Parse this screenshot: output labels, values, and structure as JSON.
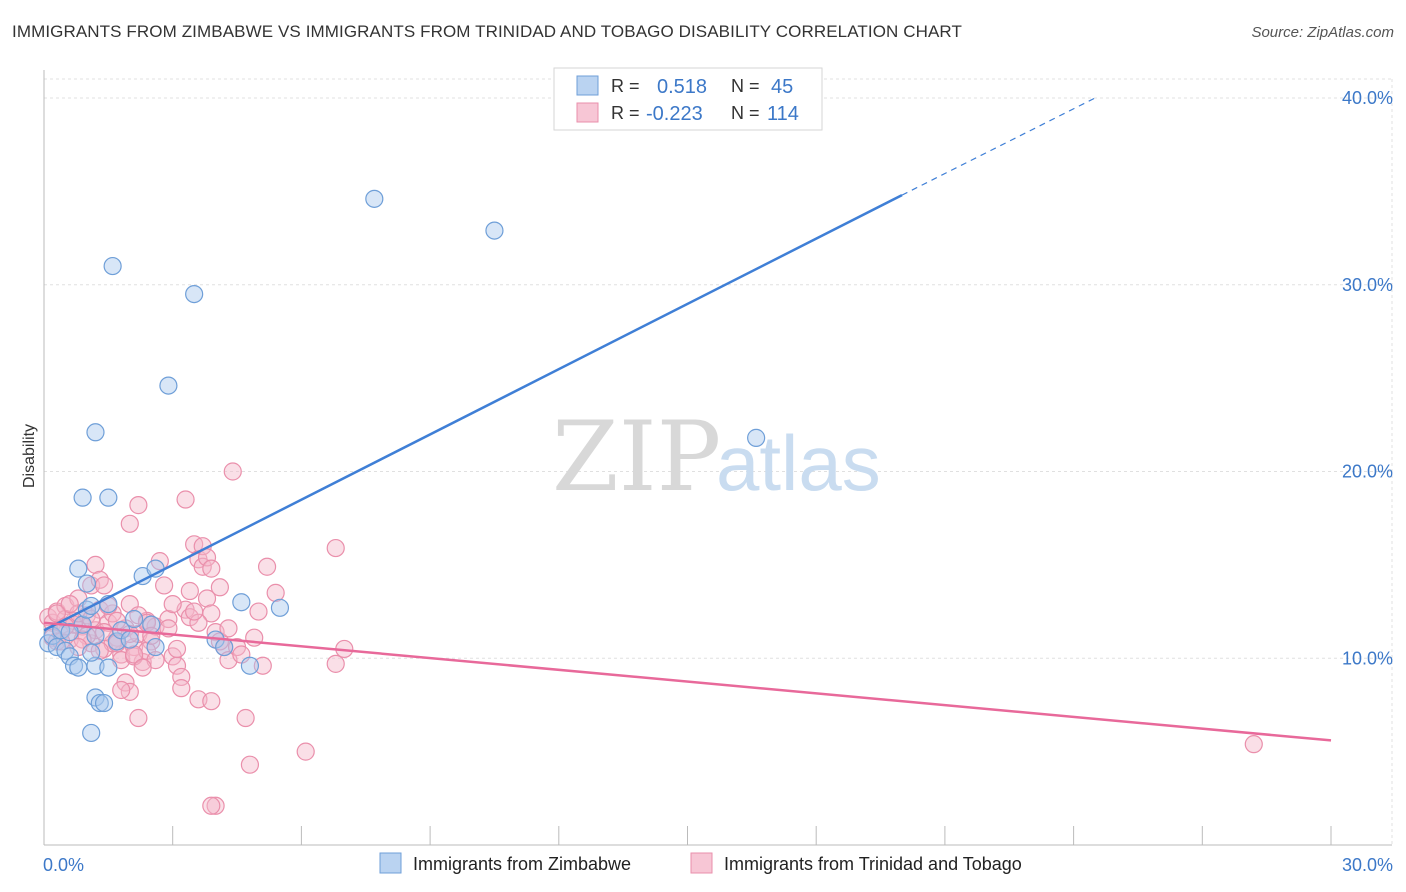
{
  "title": "IMMIGRANTS FROM ZIMBABWE VS IMMIGRANTS FROM TRINIDAD AND TOBAGO DISABILITY CORRELATION CHART",
  "source": "Source: ZipAtlas.com",
  "watermark": {
    "zip": "ZIP",
    "atlas": "atlas"
  },
  "colors": {
    "blue": "#a9c8ee",
    "blue_stroke": "#6f9fd8",
    "blue_line": "#3f7fd6",
    "pink": "#f5b8ca",
    "pink_stroke": "#ea8fab",
    "pink_line": "#e8699a",
    "tick_text": "#3c78c8",
    "grid": "#e0e0e0"
  },
  "chart_data": {
    "type": "scatter",
    "title": "IMMIGRANTS FROM ZIMBABWE VS IMMIGRANTS FROM TRINIDAD AND TOBAGO DISABILITY CORRELATION CHART",
    "xlabel": "",
    "ylabel": "Disability",
    "xlim": [
      0,
      30
    ],
    "ylim": [
      0,
      40
    ],
    "x_ticks": [
      "0.0%",
      "30.0%"
    ],
    "y_ticks": [
      {
        "value": 10,
        "label": "10.0%"
      },
      {
        "value": 20,
        "label": "20.0%"
      },
      {
        "value": 30,
        "label": "30.0%"
      },
      {
        "value": 40,
        "label": "40.0%"
      }
    ],
    "legend_position": "top-center",
    "grid": true,
    "series": [
      {
        "name": "Immigrants from Zimbabwe",
        "color": "#a9c8ee",
        "R": "0.518",
        "N": "45",
        "trend": {
          "x": [
            0,
            20.0
          ],
          "y": [
            11.5,
            34.8
          ],
          "dashed_to": [
            24.5,
            40.0
          ]
        },
        "points": [
          [
            0.1,
            10.8
          ],
          [
            0.2,
            11.2
          ],
          [
            0.3,
            10.6
          ],
          [
            0.4,
            11.5
          ],
          [
            0.5,
            10.4
          ],
          [
            0.6,
            10.1
          ],
          [
            0.7,
            9.6
          ],
          [
            0.8,
            9.5
          ],
          [
            0.9,
            11.8
          ],
          [
            1.0,
            12.6
          ],
          [
            1.1,
            12.8
          ],
          [
            1.2,
            9.6
          ],
          [
            0.9,
            18.6
          ],
          [
            1.5,
            18.6
          ],
          [
            0.8,
            14.8
          ],
          [
            1.0,
            14.0
          ],
          [
            1.2,
            11.2
          ],
          [
            1.1,
            10.3
          ],
          [
            1.5,
            12.9
          ],
          [
            1.7,
            10.9
          ],
          [
            1.8,
            11.5
          ],
          [
            2.0,
            11.0
          ],
          [
            2.1,
            12.1
          ],
          [
            2.3,
            14.4
          ],
          [
            2.6,
            10.6
          ],
          [
            2.5,
            11.8
          ],
          [
            2.6,
            14.8
          ],
          [
            1.2,
            7.9
          ],
          [
            1.3,
            7.6
          ],
          [
            1.4,
            7.6
          ],
          [
            1.1,
            6.0
          ],
          [
            1.2,
            22.1
          ],
          [
            1.6,
            31.0
          ],
          [
            2.9,
            24.6
          ],
          [
            3.5,
            29.5
          ],
          [
            7.7,
            34.6
          ],
          [
            10.5,
            32.9
          ],
          [
            16.6,
            21.8
          ],
          [
            4.0,
            11.0
          ],
          [
            4.2,
            10.6
          ],
          [
            4.6,
            13.0
          ],
          [
            4.8,
            9.6
          ],
          [
            5.5,
            12.7
          ],
          [
            1.5,
            9.5
          ],
          [
            0.6,
            11.4
          ]
        ]
      },
      {
        "name": "Immigrants from Trinidad and Tobago",
        "color": "#f5b8ca",
        "R": "-0.223",
        "N": "114",
        "trend": {
          "x": [
            0,
            30
          ],
          "y": [
            11.9,
            5.6
          ]
        },
        "points": [
          [
            0.1,
            12.2
          ],
          [
            0.2,
            11.9
          ],
          [
            0.3,
            12.5
          ],
          [
            0.4,
            11.4
          ],
          [
            0.5,
            12.8
          ],
          [
            0.6,
            11.0
          ],
          [
            0.7,
            12.0
          ],
          [
            0.8,
            13.2
          ],
          [
            0.9,
            11.7
          ],
          [
            1.0,
            12.3
          ],
          [
            1.1,
            10.8
          ],
          [
            1.2,
            11.5
          ],
          [
            1.3,
            12.6
          ],
          [
            1.4,
            10.5
          ],
          [
            1.5,
            11.9
          ],
          [
            1.6,
            12.4
          ],
          [
            1.7,
            11.1
          ],
          [
            1.8,
            10.2
          ],
          [
            1.9,
            11.6
          ],
          [
            2.0,
            12.9
          ],
          [
            2.1,
            10.6
          ],
          [
            2.2,
            11.3
          ],
          [
            2.3,
            9.8
          ],
          [
            2.4,
            12.0
          ],
          [
            2.5,
            10.9
          ],
          [
            2.6,
            11.7
          ],
          [
            0.2,
            11.1
          ],
          [
            0.3,
            10.9
          ],
          [
            0.5,
            12.1
          ],
          [
            0.7,
            11.8
          ],
          [
            0.8,
            12.4
          ],
          [
            1.0,
            11.2
          ],
          [
            1.1,
            13.9
          ],
          [
            1.2,
            15.0
          ],
          [
            1.3,
            14.2
          ],
          [
            1.5,
            12.8
          ],
          [
            1.6,
            10.8
          ],
          [
            1.8,
            9.9
          ],
          [
            1.9,
            8.7
          ],
          [
            2.0,
            8.2
          ],
          [
            2.1,
            10.1
          ],
          [
            2.2,
            12.3
          ],
          [
            2.4,
            10.4
          ],
          [
            2.6,
            9.9
          ],
          [
            2.7,
            15.2
          ],
          [
            2.8,
            13.9
          ],
          [
            2.9,
            12.1
          ],
          [
            3.0,
            10.1
          ],
          [
            3.1,
            9.6
          ],
          [
            3.2,
            9.0
          ],
          [
            3.3,
            12.6
          ],
          [
            3.4,
            13.6
          ],
          [
            3.5,
            16.1
          ],
          [
            3.6,
            15.3
          ],
          [
            3.7,
            14.9
          ],
          [
            3.8,
            13.2
          ],
          [
            3.9,
            12.4
          ],
          [
            4.0,
            11.4
          ],
          [
            4.1,
            13.8
          ],
          [
            4.2,
            10.6
          ],
          [
            4.3,
            9.9
          ],
          [
            4.4,
            20.0
          ],
          [
            2.2,
            18.2
          ],
          [
            2.0,
            17.2
          ],
          [
            3.3,
            18.5
          ],
          [
            3.7,
            16.0
          ],
          [
            3.8,
            15.4
          ],
          [
            3.9,
            14.8
          ],
          [
            3.6,
            7.8
          ],
          [
            3.9,
            7.7
          ],
          [
            4.0,
            2.1
          ],
          [
            3.9,
            2.1
          ],
          [
            4.7,
            6.8
          ],
          [
            4.8,
            4.3
          ],
          [
            5.0,
            12.5
          ],
          [
            5.2,
            14.9
          ],
          [
            5.4,
            13.5
          ],
          [
            5.1,
            9.6
          ],
          [
            6.1,
            5.0
          ],
          [
            6.8,
            15.9
          ],
          [
            6.8,
            9.7
          ],
          [
            7.0,
            10.5
          ],
          [
            2.2,
            6.8
          ],
          [
            3.2,
            8.4
          ],
          [
            1.7,
            12.0
          ],
          [
            1.4,
            13.9
          ],
          [
            0.4,
            10.9
          ],
          [
            0.6,
            12.9
          ],
          [
            0.9,
            11.0
          ],
          [
            1.3,
            10.4
          ],
          [
            2.0,
            11.3
          ],
          [
            2.4,
            11.9
          ],
          [
            2.9,
            11.6
          ],
          [
            3.1,
            10.5
          ],
          [
            3.4,
            12.2
          ],
          [
            3.6,
            11.9
          ],
          [
            4.5,
            10.6
          ],
          [
            4.6,
            10.2
          ],
          [
            0.3,
            12.4
          ],
          [
            0.5,
            11.7
          ],
          [
            0.8,
            10.6
          ],
          [
            1.1,
            12.1
          ],
          [
            1.4,
            11.4
          ],
          [
            1.7,
            10.8
          ],
          [
            2.1,
            10.2
          ],
          [
            2.3,
            9.5
          ],
          [
            2.5,
            11.2
          ],
          [
            3.0,
            12.9
          ],
          [
            3.5,
            12.5
          ],
          [
            4.1,
            10.9
          ],
          [
            4.3,
            11.6
          ],
          [
            4.9,
            11.1
          ],
          [
            1.8,
            8.3
          ],
          [
            28.2,
            5.4
          ]
        ]
      }
    ]
  }
}
